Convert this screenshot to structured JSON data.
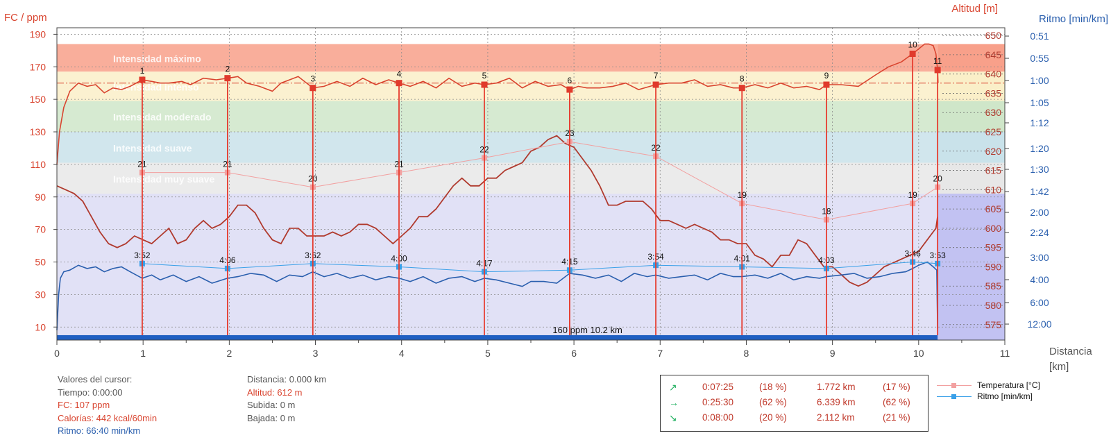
{
  "chart_data": {
    "type": "line",
    "xlabel": "Distancia",
    "xlabel_unit": "[km]",
    "xlim": [
      0,
      11
    ],
    "x_ticks": [
      "0",
      "1",
      "2",
      "3",
      "4",
      "5",
      "6",
      "7",
      "8",
      "9",
      "10",
      "11"
    ],
    "y_left": {
      "label": "FC / ppm",
      "range": [
        2,
        194
      ],
      "ticks": [
        "10",
        "30",
        "50",
        "70",
        "90",
        "110",
        "130",
        "150",
        "170",
        "190"
      ]
    },
    "y_right_altitude": {
      "label": "Altitud [m]",
      "range": [
        571,
        652
      ],
      "ticks": [
        "575",
        "580",
        "585",
        "590",
        "595",
        "600",
        "605",
        "610",
        "615",
        "620",
        "625",
        "630",
        "635",
        "640",
        "645",
        "650"
      ]
    },
    "y_right_pace": {
      "label": "Ritmo [min/km]",
      "ticks": [
        "0:51",
        "0:55",
        "1:00",
        "1:05",
        "1:12",
        "1:20",
        "1:30",
        "1:42",
        "2:00",
        "2:24",
        "3:00",
        "4:00",
        "6:00",
        "12:00"
      ]
    },
    "zones": [
      {
        "label": "Intensidad máximo",
        "from": 167,
        "to": 184,
        "color": "#f8a08a"
      },
      {
        "label": "Intensidad intenso",
        "from": 149,
        "to": 167,
        "color": "#faefc8"
      },
      {
        "label": "Intensidad moderado",
        "from": 130,
        "to": 149,
        "color": "#cfe6c9"
      },
      {
        "label": "Intensidad suave",
        "from": 111,
        "to": 130,
        "color": "#c9e2ea"
      },
      {
        "label": "Intensidad muy suave",
        "from": 92,
        "to": 111,
        "color": "#e7e7e7"
      },
      {
        "label": "",
        "from": 2,
        "to": 92,
        "color": "#dcdcf5"
      }
    ],
    "avg_hr_line": 160,
    "bottom_bar_label": "160 ppm 10.2 km",
    "laps": [
      {
        "n": "1",
        "km": 0.99
      },
      {
        "n": "2",
        "km": 1.98
      },
      {
        "n": "3",
        "km": 2.97
      },
      {
        "n": "4",
        "km": 3.97
      },
      {
        "n": "5",
        "km": 4.96
      },
      {
        "n": "6",
        "km": 5.95
      },
      {
        "n": "7",
        "km": 6.95
      },
      {
        "n": "8",
        "km": 7.95
      },
      {
        "n": "9",
        "km": 8.93
      },
      {
        "n": "10",
        "km": 9.93
      },
      {
        "n": "11",
        "km": 10.22
      }
    ],
    "lap_hr": [
      162,
      163,
      157,
      160,
      159,
      156,
      159,
      157,
      159,
      178,
      168
    ],
    "series": [
      {
        "name": "FC",
        "color": "#d9442f",
        "x": [
          0,
          0.03,
          0.08,
          0.15,
          0.25,
          0.35,
          0.45,
          0.55,
          0.65,
          0.75,
          0.85,
          0.99,
          1.1,
          1.2,
          1.3,
          1.45,
          1.55,
          1.7,
          1.85,
          1.98,
          2.1,
          2.2,
          2.35,
          2.5,
          2.6,
          2.8,
          2.97,
          3.1,
          3.25,
          3.4,
          3.55,
          3.7,
          3.85,
          3.97,
          4.1,
          4.25,
          4.4,
          4.55,
          4.7,
          4.85,
          4.96,
          5.1,
          5.25,
          5.4,
          5.55,
          5.7,
          5.85,
          5.95,
          6.05,
          6.15,
          6.3,
          6.45,
          6.6,
          6.75,
          6.95,
          7.1,
          7.25,
          7.4,
          7.55,
          7.7,
          7.85,
          7.95,
          8.1,
          8.25,
          8.4,
          8.55,
          8.7,
          8.85,
          8.93,
          9.1,
          9.3,
          9.5,
          9.65,
          9.8,
          9.93,
          10.0,
          10.07,
          10.12,
          10.17,
          10.2,
          10.22,
          10.225
        ],
        "y": [
          110,
          130,
          145,
          155,
          160,
          158,
          159,
          154,
          157,
          156,
          158,
          162,
          161,
          160,
          160,
          161,
          159,
          163,
          162,
          163,
          164,
          160,
          158,
          155,
          160,
          164,
          157,
          158,
          161,
          158,
          163,
          159,
          162,
          160,
          158,
          161,
          157,
          163,
          158,
          160,
          159,
          160,
          163,
          157,
          161,
          158,
          159,
          156,
          158,
          157,
          157,
          158,
          160,
          156,
          159,
          160,
          160,
          162,
          158,
          159,
          157,
          157,
          159,
          157,
          160,
          157,
          158,
          156,
          159,
          159,
          158,
          165,
          170,
          173,
          178,
          181,
          184,
          184,
          183,
          178,
          168,
          160
        ]
      },
      {
        "name": "Altitud",
        "color": "#b03a2e",
        "x": [
          0,
          0.1,
          0.2,
          0.3,
          0.4,
          0.5,
          0.6,
          0.7,
          0.8,
          0.9,
          1.0,
          1.1,
          1.2,
          1.3,
          1.4,
          1.5,
          1.6,
          1.7,
          1.8,
          1.9,
          2.0,
          2.1,
          2.2,
          2.3,
          2.4,
          2.5,
          2.6,
          2.7,
          2.8,
          2.9,
          3.0,
          3.1,
          3.2,
          3.3,
          3.4,
          3.5,
          3.6,
          3.7,
          3.8,
          3.9,
          4.0,
          4.1,
          4.2,
          4.3,
          4.4,
          4.5,
          4.6,
          4.7,
          4.8,
          4.9,
          5.0,
          5.1,
          5.2,
          5.3,
          5.4,
          5.5,
          5.6,
          5.7,
          5.8,
          5.9,
          6.0,
          6.1,
          6.2,
          6.3,
          6.4,
          6.5,
          6.6,
          6.7,
          6.8,
          6.9,
          7.0,
          7.1,
          7.2,
          7.3,
          7.4,
          7.5,
          7.6,
          7.7,
          7.8,
          7.9,
          8.0,
          8.1,
          8.2,
          8.3,
          8.4,
          8.5,
          8.6,
          8.7,
          8.8,
          8.9,
          9.0,
          9.1,
          9.2,
          9.3,
          9.4,
          9.5,
          9.6,
          9.7,
          9.8,
          9.9,
          10.0,
          10.1,
          10.2,
          10.22
        ],
        "y": [
          611,
          610,
          609,
          607,
          603,
          599,
          596,
          595,
          596,
          598,
          597,
          596,
          598,
          600,
          596,
          597,
          600,
          602,
          600,
          601,
          603,
          606,
          606,
          604,
          600,
          597,
          596,
          600,
          600,
          598,
          598,
          598,
          599,
          598,
          599,
          601,
          601,
          600,
          598,
          596,
          598,
          600,
          603,
          603,
          605,
          608,
          611,
          613,
          611,
          611,
          613,
          613,
          615,
          616,
          617,
          620,
          621,
          623,
          624,
          622,
          621,
          618,
          615,
          611,
          606,
          606,
          607,
          607,
          607,
          605,
          602,
          602,
          601,
          600,
          601,
          600,
          599,
          597,
          597,
          596,
          596,
          593,
          592,
          590,
          593,
          593,
          597,
          596,
          593,
          590,
          590,
          588,
          586,
          585,
          586,
          588,
          590,
          591,
          592,
          593,
          594,
          597,
          600,
          603
        ]
      },
      {
        "name": "Ritmo [min/km]",
        "color": "#2a5fae",
        "x": [
          0,
          0.02,
          0.04,
          0.08,
          0.15,
          0.25,
          0.35,
          0.45,
          0.55,
          0.65,
          0.75,
          0.85,
          0.99,
          1.1,
          1.2,
          1.35,
          1.5,
          1.65,
          1.8,
          1.98,
          2.1,
          2.25,
          2.4,
          2.55,
          2.7,
          2.85,
          2.97,
          3.1,
          3.25,
          3.4,
          3.55,
          3.7,
          3.85,
          3.97,
          4.1,
          4.25,
          4.4,
          4.55,
          4.7,
          4.85,
          4.96,
          5.1,
          5.25,
          5.4,
          5.5,
          5.65,
          5.8,
          5.95,
          6.1,
          6.25,
          6.4,
          6.55,
          6.7,
          6.85,
          6.95,
          7.1,
          7.25,
          7.4,
          7.55,
          7.7,
          7.85,
          7.95,
          8.1,
          8.25,
          8.4,
          8.55,
          8.7,
          8.85,
          8.93,
          9.1,
          9.25,
          9.4,
          9.55,
          9.7,
          9.85,
          9.93,
          10.0,
          10.1,
          10.17,
          10.21,
          10.22
        ],
        "y": [
          8,
          30,
          40,
          44,
          45,
          48,
          46,
          47,
          44,
          46,
          47,
          44,
          40,
          42,
          39,
          42,
          38,
          41,
          37,
          40,
          41,
          43,
          42,
          38,
          42,
          41,
          44,
          41,
          43,
          40,
          42,
          39,
          41,
          40,
          38,
          41,
          37,
          40,
          41,
          38,
          40,
          39,
          37,
          35,
          38,
          38,
          37,
          43,
          42,
          40,
          42,
          38,
          43,
          41,
          42,
          40,
          41,
          42,
          39,
          43,
          41,
          41,
          42,
          40,
          43,
          39,
          41,
          40,
          41,
          42,
          43,
          40,
          41,
          43,
          44,
          46,
          48,
          50,
          47,
          45,
          9
        ]
      },
      {
        "name": "Temperatura [°C]",
        "color": "#f2a0a0",
        "points_x": [
          0.99,
          1.98,
          2.97,
          3.97,
          4.96,
          5.95,
          6.95,
          7.95,
          8.93,
          9.93,
          10.22
        ],
        "values": [
          21,
          21,
          20,
          21,
          22,
          23,
          22,
          19,
          18,
          19,
          20
        ],
        "labels": [
          "21",
          "21",
          "20",
          "21",
          "22",
          "23",
          "22",
          "19",
          "18",
          "19",
          "20"
        ],
        "plot_hr": [
          105,
          105,
          96,
          105,
          114,
          124,
          115,
          86,
          76,
          86,
          96
        ]
      },
      {
        "name": "Ritmo [min/km] (lap)",
        "color": "#3aa0e8",
        "points_x": [
          0.99,
          1.98,
          2.97,
          3.97,
          4.96,
          5.95,
          6.95,
          7.95,
          8.93,
          9.93,
          10.22
        ],
        "labels": [
          "3:52",
          "4:06",
          "3:52",
          "4:00",
          "4:17",
          "4:15",
          "3:54",
          "4:01",
          "4:03",
          "3:46",
          "3:53"
        ],
        "plot_hr": [
          49,
          46,
          49,
          47,
          44,
          45,
          48,
          47,
          46,
          50,
          49
        ]
      }
    ]
  },
  "cursor_panel": {
    "title": "Valores del cursor:",
    "time": "Tiempo: 0:00:00",
    "hr": "FC: 107 ppm",
    "calories": "Calorías: 442 kcal/60min",
    "pace": "Ritmo: 66:40 min/km",
    "distance": "Distancia: 0.000 km",
    "altitude": "Altitud: 612 m",
    "ascent": "Subida: 0 m",
    "descent": "Bajada: 0 m"
  },
  "stats": {
    "rows": [
      {
        "icon": "↗",
        "time": "0:07:25",
        "time_pct": "(18 %)",
        "dist": "1.772 km",
        "dist_pct": "(17 %)"
      },
      {
        "icon": "→",
        "time": "0:25:30",
        "time_pct": "(62 %)",
        "dist": "6.339 km",
        "dist_pct": "(62 %)"
      },
      {
        "icon": "↘",
        "time": "0:08:00",
        "time_pct": "(20 %)",
        "dist": "2.112 km",
        "dist_pct": "(21 %)"
      }
    ]
  },
  "legend": {
    "items": [
      {
        "label": "Temperatura [°C]",
        "color": "#f2a0a0"
      },
      {
        "label": "Ritmo [min/km]",
        "color": "#3aa0e8"
      }
    ]
  }
}
